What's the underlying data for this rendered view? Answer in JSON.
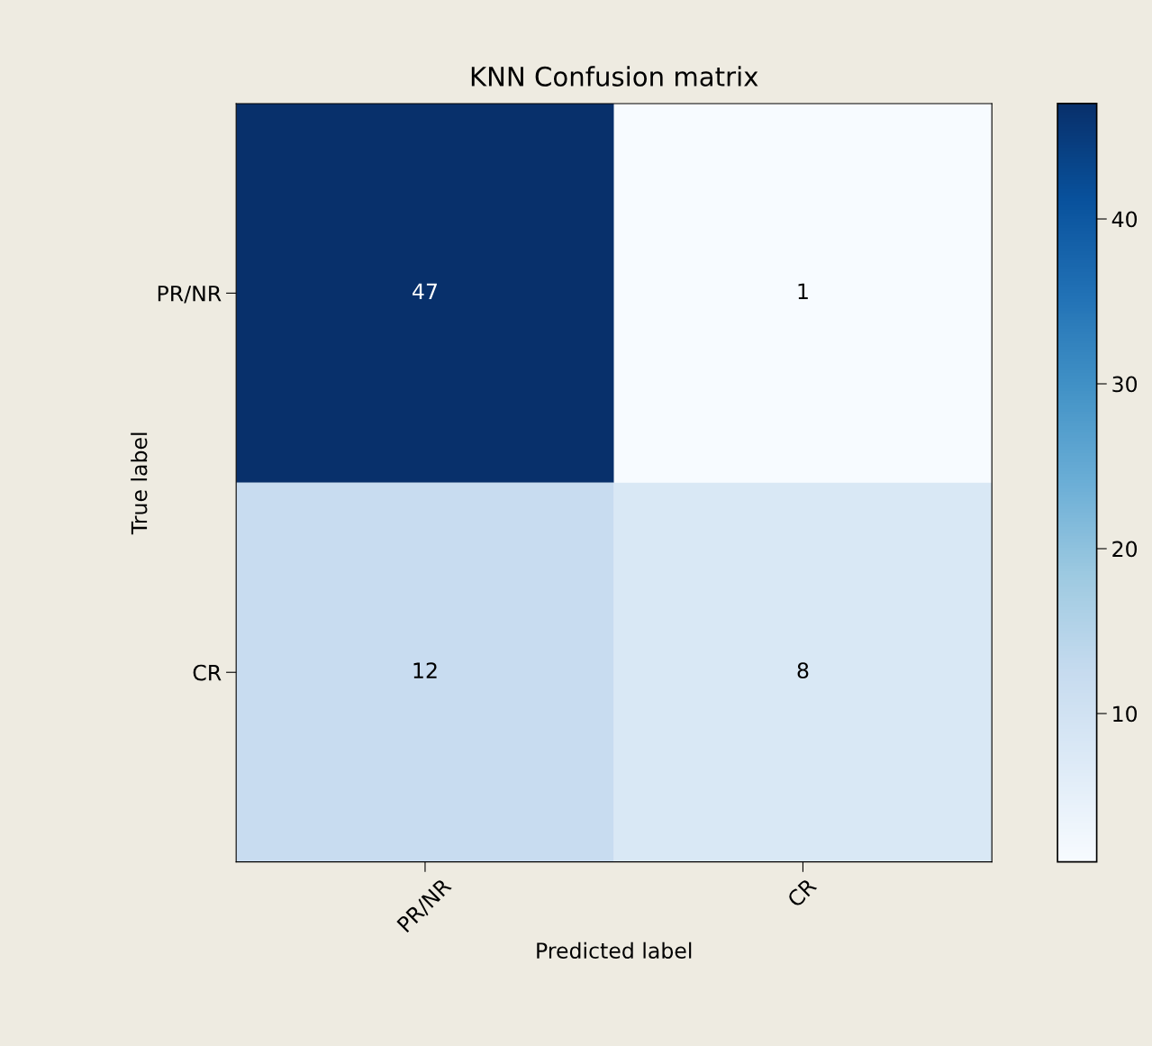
{
  "chart_data": {
    "type": "heatmap",
    "title": "KNN Confusion matrix",
    "xlabel": "Predicted label",
    "ylabel": "True label",
    "categories": [
      "PR/NR",
      "CR"
    ],
    "y_categories": [
      "PR/NR",
      "CR"
    ],
    "cells": [
      [
        47,
        1
      ],
      [
        12,
        8
      ]
    ],
    "clim": [
      1,
      47
    ],
    "cticks": [
      10,
      20,
      30,
      40
    ],
    "data_labels": true
  }
}
